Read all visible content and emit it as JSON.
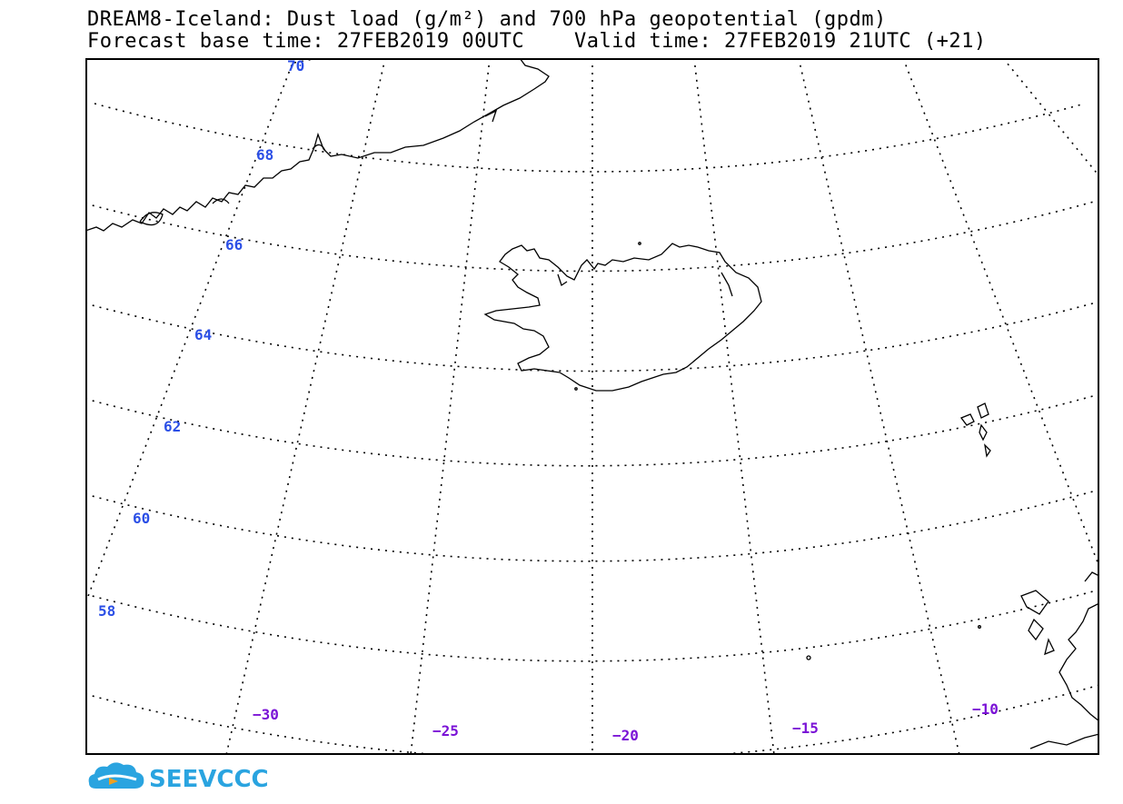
{
  "title": {
    "line1": "DREAM8-Iceland: Dust load (g/m²) and 700 hPa geopotential (gpdm)",
    "line2": "Forecast base time: 27FEB2019 00UTC    Valid time: 27FEB2019 21UTC (+21)"
  },
  "map": {
    "region": "Iceland",
    "graticule_style": "dotted",
    "latitude_labels": [
      "70",
      "68",
      "66",
      "64",
      "62",
      "60",
      "58"
    ],
    "longitude_labels": [
      "−30",
      "−25",
      "−20",
      "−15",
      "−10"
    ],
    "colors": {
      "latitude_label": "#2b4fe6",
      "longitude_label": "#7a12d6",
      "coastline": "#000000",
      "frame": "#000000"
    }
  },
  "logo": {
    "text": "SEEVCCC",
    "icon": "cloud-logo-icon",
    "color": "#2aa4e0"
  }
}
